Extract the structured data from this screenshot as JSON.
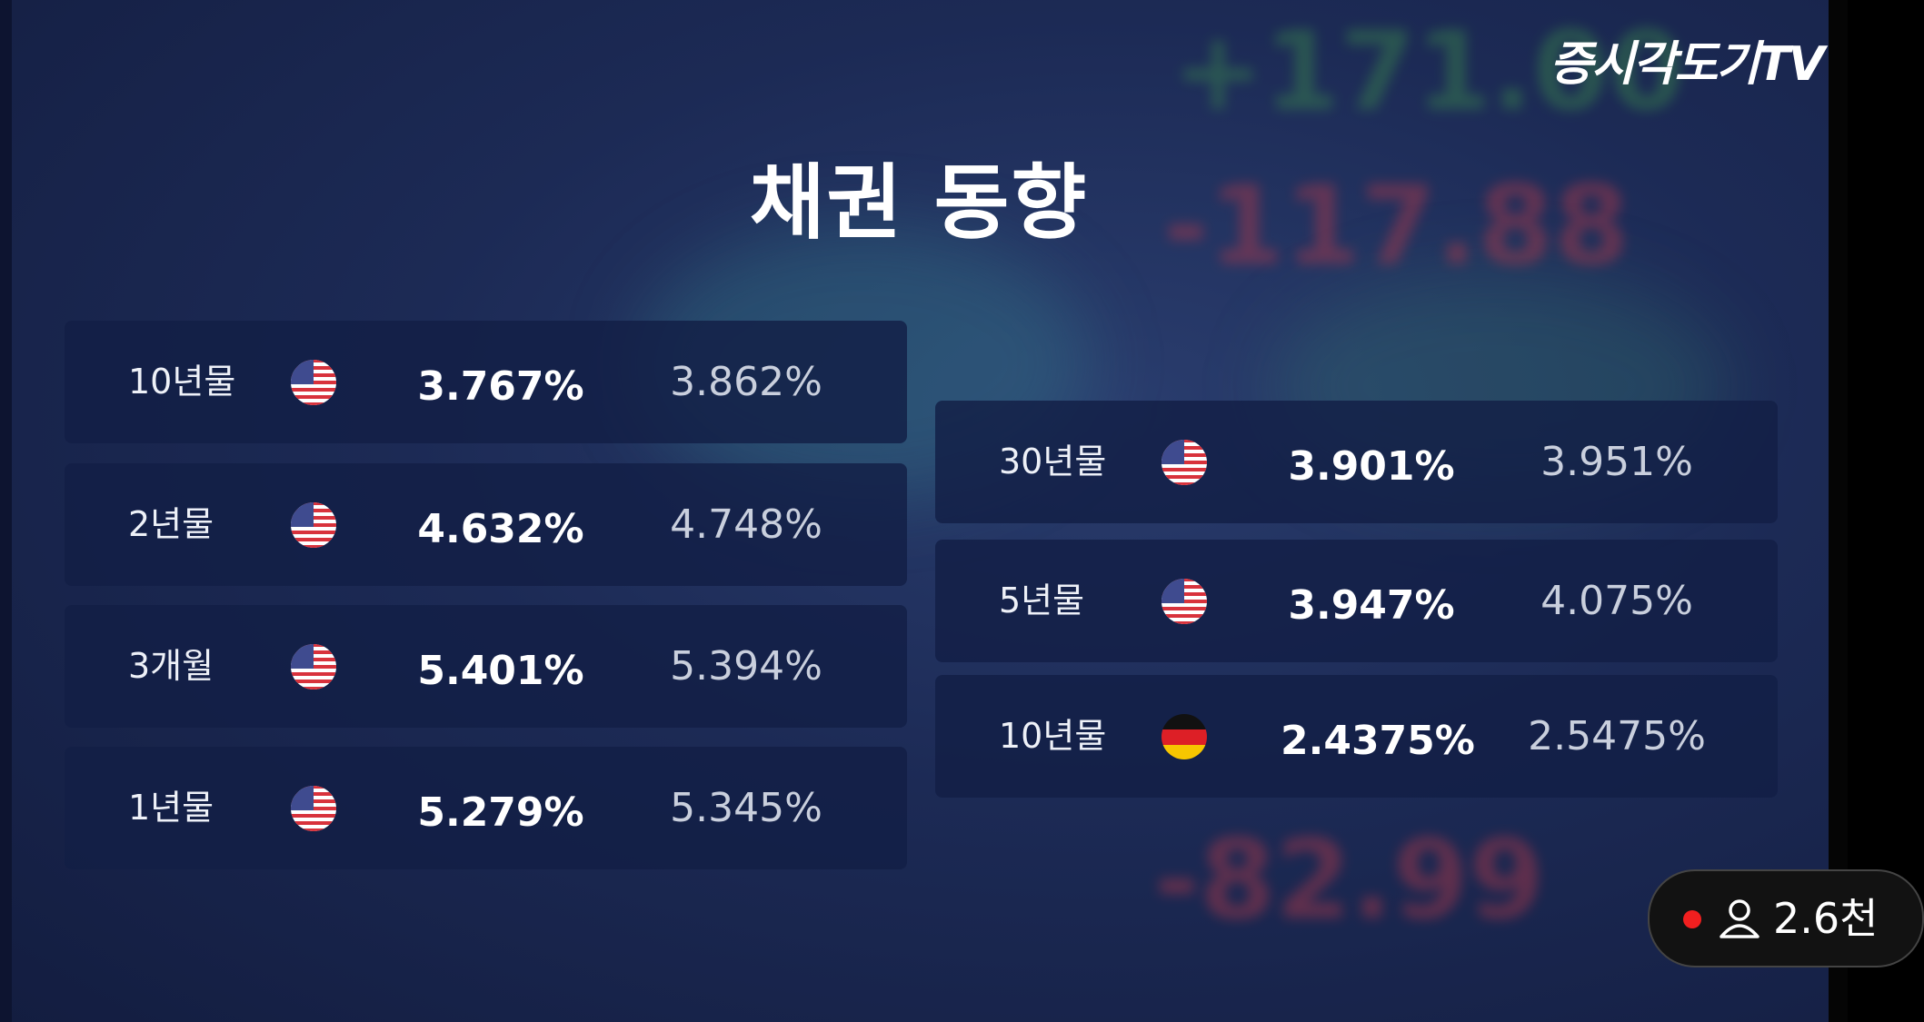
{
  "logo": "증시각도기TV",
  "title": "채권 동향",
  "background_numbers": [
    "+171.00",
    "-117.88",
    "-82.99"
  ],
  "left_table": {
    "rows": [
      [
        "10년물",
        "3.767%",
        "3.862%"
      ],
      [
        "2년물",
        "4.632%",
        "4.748%"
      ],
      [
        "3개월",
        "5.401%",
        "5.394%"
      ],
      [
        "1년물",
        "5.279%",
        "5.345%"
      ]
    ]
  },
  "right_table": {
    "rows": [
      [
        "30년물",
        "3.901%",
        "3.951%"
      ],
      [
        "5년물",
        "3.947%",
        "4.075%"
      ],
      [
        "10년물",
        "2.4375%",
        "2.5475%"
      ]
    ]
  },
  "viewer_badge": {
    "count": "2.6천"
  }
}
